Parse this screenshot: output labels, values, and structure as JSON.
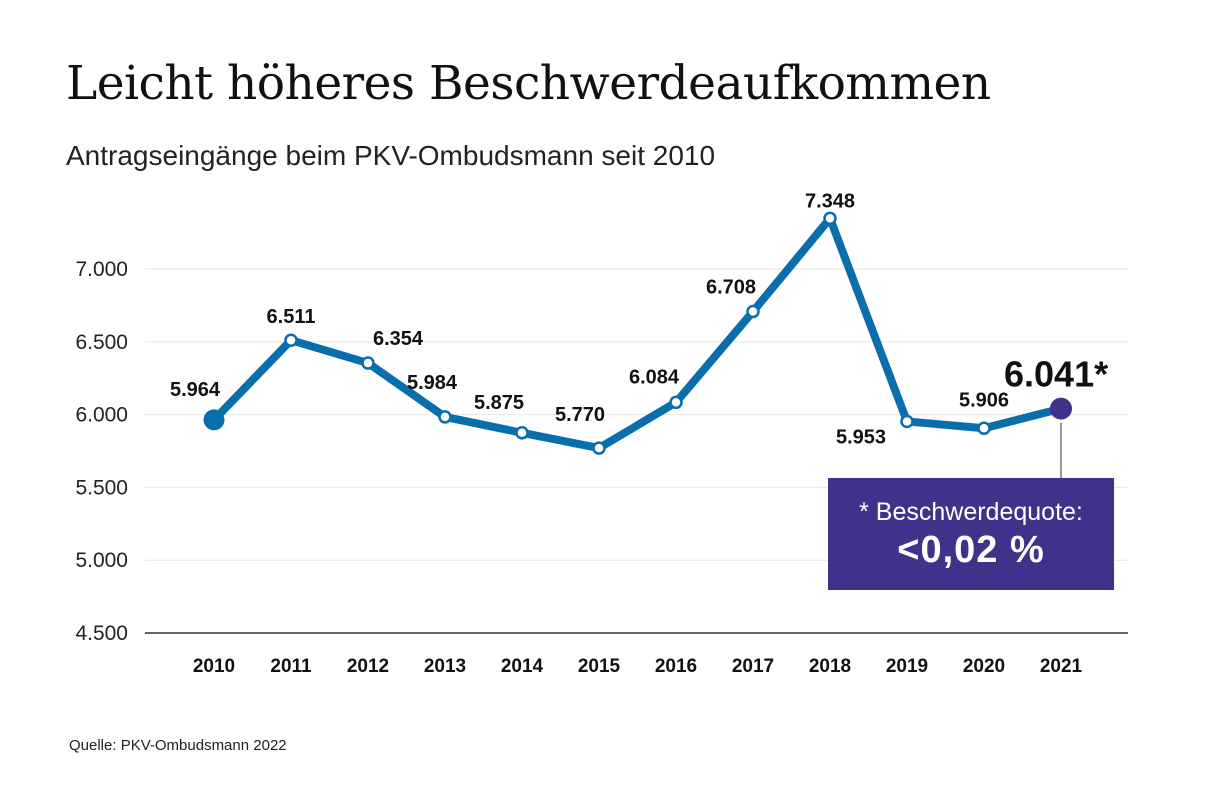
{
  "title": "Leicht höheres Beschwerdeaufkommen",
  "subtitle": "Antragseingänge beim PKV-Ombudsmann seit 2010",
  "source": "Quelle: PKV-Ombudsmann 2022",
  "note": {
    "line1": "* Beschwerdequote:",
    "line2": "<0,02 %"
  },
  "colors": {
    "line": "#0a6ead",
    "highlight": "#40318a",
    "grid": "#e6e6e6",
    "axis": "#666666"
  },
  "chart_data": {
    "type": "line",
    "title": "Leicht höheres Beschwerdeaufkommen",
    "subtitle": "Antragseingänge beim PKV-Ombudsmann seit 2010",
    "xlabel": "",
    "ylabel": "",
    "ylim": [
      4500,
      7000
    ],
    "yticks": [
      4500,
      5000,
      5500,
      6000,
      6500,
      7000
    ],
    "ytick_labels": [
      "4.500",
      "5.000",
      "5.500",
      "6.000",
      "6.500",
      "7.000"
    ],
    "grid": true,
    "categories": [
      "2010",
      "2011",
      "2012",
      "2013",
      "2014",
      "2015",
      "2016",
      "2017",
      "2018",
      "2019",
      "2020",
      "2021"
    ],
    "values": [
      5964,
      6511,
      6354,
      5984,
      5875,
      5770,
      6084,
      6708,
      7348,
      5953,
      5906,
      6041
    ],
    "value_labels": [
      "5.964",
      "6.511",
      "6.354",
      "5.984",
      "5.875",
      "5.770",
      "6.084",
      "6.708",
      "7.348",
      "5.953",
      "5.906",
      "6.041*"
    ]
  }
}
